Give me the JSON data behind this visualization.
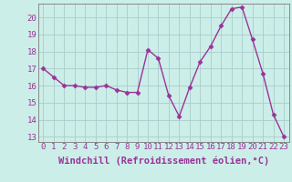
{
  "x": [
    0,
    1,
    2,
    3,
    4,
    5,
    6,
    7,
    8,
    9,
    10,
    11,
    12,
    13,
    14,
    15,
    16,
    17,
    18,
    19,
    20,
    21,
    22,
    23
  ],
  "y": [
    17.0,
    16.5,
    16.0,
    16.0,
    15.9,
    15.9,
    16.0,
    15.75,
    15.6,
    15.6,
    18.1,
    17.6,
    15.4,
    14.2,
    15.9,
    17.4,
    18.3,
    19.5,
    20.5,
    20.6,
    18.7,
    16.7,
    14.3,
    13.0
  ],
  "line_color": "#993399",
  "marker": "D",
  "marker_size": 2.5,
  "bg_color": "#cceee8",
  "grid_color": "#aacccc",
  "xlabel": "Windchill (Refroidissement éolien,°C)",
  "ylabel": "",
  "ylim": [
    12.7,
    20.8
  ],
  "xlim": [
    -0.5,
    23.5
  ],
  "yticks": [
    13,
    14,
    15,
    16,
    17,
    18,
    19,
    20
  ],
  "xticks": [
    0,
    1,
    2,
    3,
    4,
    5,
    6,
    7,
    8,
    9,
    10,
    11,
    12,
    13,
    14,
    15,
    16,
    17,
    18,
    19,
    20,
    21,
    22,
    23
  ],
  "xlabel_fontsize": 7.5,
  "tick_fontsize": 6.5,
  "spine_color": "#888888",
  "linewidth": 1.0
}
